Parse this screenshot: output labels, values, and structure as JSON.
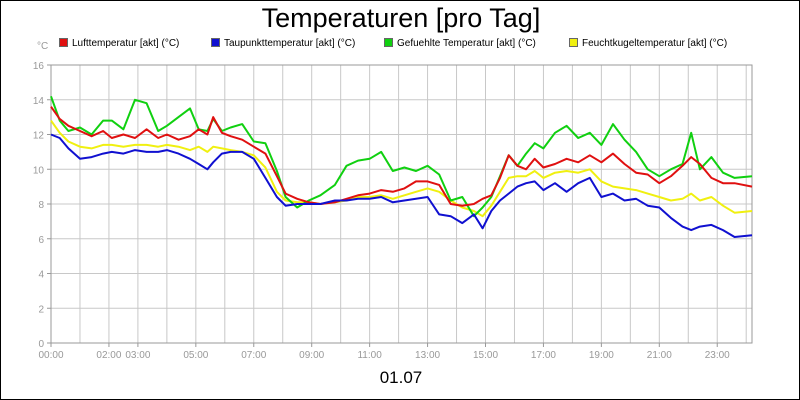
{
  "chart_data": {
    "type": "line",
    "title": "Temperaturen [pro Tag]",
    "ylabel": "°C",
    "xlabel": "01.07",
    "ylim": [
      0,
      16
    ],
    "yticks": [
      0,
      2,
      4,
      6,
      8,
      10,
      12,
      14,
      16
    ],
    "xlim": [
      0,
      24.2
    ],
    "xticks": [
      {
        "h": 0,
        "label": "00:00"
      },
      {
        "h": 2,
        "label": "02:00"
      },
      {
        "h": 3,
        "label": "03:00"
      },
      {
        "h": 5,
        "label": "05:00"
      },
      {
        "h": 7,
        "label": "07:00"
      },
      {
        "h": 9,
        "label": "09:00"
      },
      {
        "h": 11,
        "label": "11:00"
      },
      {
        "h": 13,
        "label": "13:00"
      },
      {
        "h": 15,
        "label": "15:00"
      },
      {
        "h": 17,
        "label": "17:00"
      },
      {
        "h": 19,
        "label": "19:00"
      },
      {
        "h": 21,
        "label": "21:00"
      },
      {
        "h": 23,
        "label": "23:00"
      }
    ],
    "series": [
      {
        "name": "Lufttemperatur [akt] (°C)",
        "color": "#e01010",
        "x": [
          0,
          0.3,
          0.6,
          1,
          1.4,
          1.8,
          2.1,
          2.5,
          2.9,
          3.3,
          3.7,
          4,
          4.4,
          4.8,
          5.1,
          5.4,
          5.6,
          5.9,
          6.2,
          6.6,
          7,
          7.4,
          7.8,
          8.1,
          8.5,
          8.9,
          9.3,
          9.8,
          10.2,
          10.6,
          11,
          11.4,
          11.8,
          12.2,
          12.6,
          13,
          13.4,
          13.8,
          14.2,
          14.6,
          14.9,
          15.2,
          15.5,
          15.8,
          16.1,
          16.4,
          16.7,
          17,
          17.4,
          17.8,
          18.2,
          18.6,
          19,
          19.4,
          19.8,
          20.2,
          20.6,
          21,
          21.4,
          21.8,
          22.1,
          22.4,
          22.8,
          23.2,
          23.6,
          24.2
        ],
        "y": [
          13.6,
          12.9,
          12.5,
          12.2,
          11.9,
          12.2,
          11.8,
          12.0,
          11.8,
          12.3,
          11.8,
          12.0,
          11.7,
          11.9,
          12.3,
          12.0,
          13.0,
          12.1,
          11.9,
          11.7,
          11.3,
          10.9,
          9.6,
          8.6,
          8.3,
          8.1,
          8.0,
          8.1,
          8.3,
          8.5,
          8.6,
          8.8,
          8.7,
          8.9,
          9.3,
          9.3,
          9.1,
          8.0,
          7.9,
          8.0,
          8.3,
          8.5,
          9.5,
          10.8,
          10.2,
          10.0,
          10.6,
          10.1,
          10.3,
          10.6,
          10.4,
          10.8,
          10.4,
          10.9,
          10.3,
          9.8,
          9.7,
          9.2,
          9.6,
          10.2,
          10.7,
          10.3,
          9.5,
          9.2,
          9.2,
          9.0
        ]
      },
      {
        "name": "Taupunkttemperatur [akt] (°C)",
        "color": "#1010d0",
        "x": [
          0,
          0.3,
          0.6,
          1,
          1.4,
          1.8,
          2.1,
          2.5,
          2.9,
          3.3,
          3.7,
          4,
          4.4,
          4.8,
          5.1,
          5.4,
          5.6,
          5.9,
          6.2,
          6.6,
          7,
          7.4,
          7.8,
          8.1,
          8.5,
          8.9,
          9.3,
          9.8,
          10.2,
          10.6,
          11,
          11.4,
          11.8,
          12.2,
          12.6,
          13,
          13.4,
          13.8,
          14.2,
          14.6,
          14.9,
          15.2,
          15.5,
          15.8,
          16.1,
          16.4,
          16.7,
          17,
          17.4,
          17.8,
          18.2,
          18.6,
          19,
          19.4,
          19.8,
          20.2,
          20.6,
          21,
          21.4,
          21.8,
          22.1,
          22.4,
          22.8,
          23.2,
          23.6,
          24.2
        ],
        "y": [
          12.0,
          11.8,
          11.2,
          10.6,
          10.7,
          10.9,
          11.0,
          10.9,
          11.1,
          11.0,
          11.0,
          11.1,
          10.9,
          10.6,
          10.3,
          10.0,
          10.4,
          10.9,
          11.0,
          11.0,
          10.6,
          9.5,
          8.4,
          7.9,
          8.0,
          8.0,
          8.0,
          8.2,
          8.2,
          8.3,
          8.3,
          8.4,
          8.1,
          8.2,
          8.3,
          8.4,
          7.4,
          7.3,
          6.9,
          7.4,
          6.6,
          7.6,
          8.2,
          8.6,
          9.0,
          9.2,
          9.3,
          8.8,
          9.2,
          8.7,
          9.2,
          9.5,
          8.4,
          8.6,
          8.2,
          8.3,
          7.9,
          7.8,
          7.2,
          6.7,
          6.5,
          6.7,
          6.8,
          6.5,
          6.1,
          6.2
        ]
      },
      {
        "name": "Gefuehlte Temperatur [akt] (°C)",
        "color": "#10d010",
        "x": [
          0,
          0.3,
          0.6,
          1,
          1.4,
          1.8,
          2.1,
          2.5,
          2.9,
          3.3,
          3.7,
          4,
          4.4,
          4.8,
          5.1,
          5.4,
          5.6,
          5.9,
          6.2,
          6.6,
          7,
          7.4,
          7.8,
          8.1,
          8.5,
          8.9,
          9.3,
          9.8,
          10.2,
          10.6,
          11,
          11.4,
          11.8,
          12.2,
          12.6,
          13,
          13.4,
          13.8,
          14.2,
          14.6,
          14.9,
          15.2,
          15.5,
          15.8,
          16.1,
          16.4,
          16.7,
          17,
          17.4,
          17.8,
          18.2,
          18.6,
          19,
          19.4,
          19.8,
          20.2,
          20.6,
          21,
          21.4,
          21.8,
          22.1,
          22.4,
          22.8,
          23.2,
          23.6,
          24.2
        ],
        "y": [
          14.2,
          12.8,
          12.2,
          12.4,
          12.0,
          12.8,
          12.8,
          12.3,
          14.0,
          13.8,
          12.2,
          12.5,
          13.0,
          13.5,
          12.3,
          12.2,
          12.9,
          12.2,
          12.4,
          12.6,
          11.6,
          11.5,
          9.9,
          8.4,
          7.8,
          8.2,
          8.5,
          9.1,
          10.2,
          10.5,
          10.6,
          11.0,
          9.9,
          10.1,
          9.9,
          10.2,
          9.7,
          8.2,
          8.4,
          7.3,
          7.8,
          8.4,
          9.6,
          10.8,
          10.2,
          10.9,
          11.5,
          11.2,
          12.1,
          12.5,
          11.8,
          12.1,
          11.4,
          12.6,
          11.7,
          11.0,
          10.0,
          9.6,
          10.0,
          10.3,
          12.1,
          10.0,
          10.7,
          9.8,
          9.5,
          9.6
        ]
      },
      {
        "name": "Feuchtkugeltemperatur [akt] (°C)",
        "color": "#f0f010",
        "x": [
          0,
          0.3,
          0.6,
          1,
          1.4,
          1.8,
          2.1,
          2.5,
          2.9,
          3.3,
          3.7,
          4,
          4.4,
          4.8,
          5.1,
          5.4,
          5.6,
          5.9,
          6.2,
          6.6,
          7,
          7.4,
          7.8,
          8.1,
          8.5,
          8.9,
          9.3,
          9.8,
          10.2,
          10.6,
          11,
          11.4,
          11.8,
          12.2,
          12.6,
          13,
          13.4,
          13.8,
          14.2,
          14.6,
          14.9,
          15.2,
          15.5,
          15.8,
          16.1,
          16.4,
          16.7,
          17,
          17.4,
          17.8,
          18.2,
          18.6,
          19,
          19.4,
          19.8,
          20.2,
          20.6,
          21,
          21.4,
          21.8,
          22.1,
          22.4,
          22.8,
          23.2,
          23.6,
          24.2
        ],
        "y": [
          12.8,
          12.1,
          11.6,
          11.3,
          11.2,
          11.4,
          11.4,
          11.3,
          11.4,
          11.4,
          11.3,
          11.4,
          11.3,
          11.1,
          11.3,
          11.0,
          11.3,
          11.2,
          11.1,
          11.0,
          10.8,
          10.1,
          8.7,
          8.2,
          8.1,
          8.1,
          8.0,
          8.1,
          8.2,
          8.4,
          8.4,
          8.5,
          8.3,
          8.5,
          8.7,
          8.9,
          8.7,
          8.2,
          7.8,
          7.6,
          7.3,
          7.9,
          8.7,
          9.5,
          9.6,
          9.6,
          9.9,
          9.5,
          9.8,
          9.9,
          9.8,
          10.0,
          9.3,
          9.0,
          8.9,
          8.8,
          8.6,
          8.4,
          8.2,
          8.3,
          8.6,
          8.2,
          8.4,
          7.9,
          7.5,
          7.6
        ]
      }
    ]
  }
}
